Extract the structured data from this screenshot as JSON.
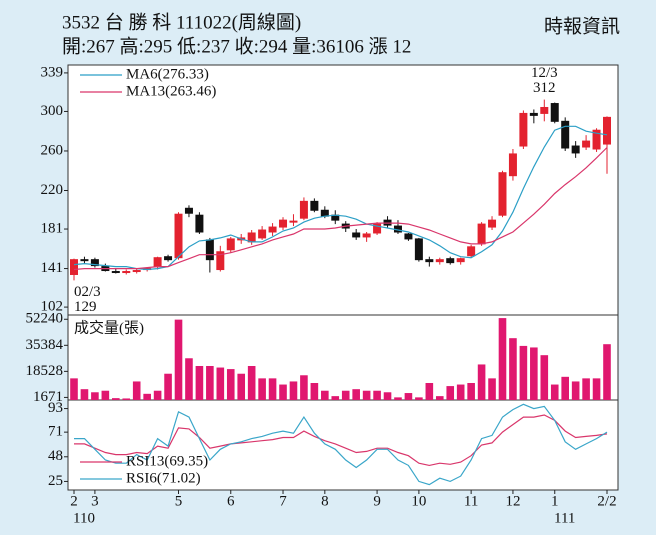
{
  "chart_data": [
    {
      "type": "candlestick",
      "title": "3532 台 勝 科 111022(周線圖)",
      "subtitle": "開:267 高:295 低:237 收:294 量:36106 漲 12",
      "source": "時報資訊",
      "open": [
        135,
        150,
        150,
        143,
        138,
        137,
        138,
        140,
        143,
        153,
        152,
        202,
        195,
        170,
        140,
        160,
        170,
        168,
        172,
        178,
        183,
        188,
        192,
        209,
        200,
        195,
        186,
        177,
        173,
        177,
        190,
        184,
        176,
        171,
        150,
        148,
        151,
        148,
        154,
        166,
        183,
        195,
        235,
        265,
        298,
        298,
        308,
        290,
        265,
        264,
        262,
        267
      ],
      "high": [
        151,
        153,
        152,
        146,
        141,
        140,
        141,
        142,
        153,
        155,
        198,
        205,
        198,
        172,
        164,
        173,
        176,
        180,
        184,
        187,
        193,
        196,
        213,
        212,
        204,
        200,
        189,
        181,
        178,
        188,
        194,
        190,
        177,
        172,
        153,
        152,
        153,
        152,
        165,
        188,
        194,
        240,
        262,
        301,
        302,
        312,
        309,
        294,
        270,
        276,
        283,
        295
      ],
      "low": [
        129,
        146,
        142,
        138,
        136,
        135,
        136,
        138,
        140,
        148,
        150,
        193,
        176,
        137,
        138,
        157,
        166,
        165,
        170,
        174,
        180,
        184,
        190,
        198,
        192,
        186,
        178,
        170,
        168,
        175,
        182,
        176,
        169,
        148,
        143,
        145,
        145,
        145,
        152,
        164,
        180,
        193,
        230,
        262,
        288,
        290,
        288,
        260,
        253,
        261,
        259,
        237
      ],
      "close": [
        150,
        149,
        144,
        139,
        137,
        138,
        139,
        141,
        152,
        150,
        196,
        197,
        178,
        150,
        158,
        171,
        172,
        177,
        180,
        183,
        190,
        189,
        209,
        200,
        194,
        190,
        182,
        173,
        176,
        186,
        185,
        178,
        171,
        150,
        148,
        150,
        147,
        151,
        163,
        186,
        190,
        238,
        257,
        298,
        296,
        304,
        290,
        263,
        258,
        270,
        281,
        294
      ],
      "up_color": "#e3222f",
      "down_color": "#111111",
      "series": [
        {
          "name": "MA6(276.33)",
          "color": "#2b9fc6",
          "values": [
            145,
            146,
            145,
            144,
            143,
            143,
            141,
            140,
            141,
            143,
            153,
            163,
            169,
            170,
            172,
            175,
            171,
            168,
            168,
            173,
            179,
            182,
            188,
            192,
            194,
            195,
            194,
            191,
            186,
            184,
            182,
            180,
            178,
            174,
            170,
            164,
            157,
            153,
            152,
            158,
            165,
            179,
            198,
            222,
            244,
            264,
            281,
            285,
            285,
            280,
            278,
            276.33
          ]
        },
        {
          "name": "MA13(263.46)",
          "color": "#d9366b",
          "values": [
            140,
            141,
            141,
            141,
            141,
            141,
            141,
            142,
            143,
            143,
            147,
            151,
            155,
            155,
            155,
            157,
            160,
            163,
            166,
            170,
            173,
            176,
            181,
            181,
            181,
            182,
            184,
            185,
            186,
            187,
            187,
            187,
            186,
            183,
            180,
            176,
            172,
            168,
            166,
            166,
            168,
            173,
            178,
            187,
            196,
            206,
            217,
            226,
            234,
            243,
            253,
            263.46
          ]
        }
      ],
      "legend": "upper left",
      "annotations": [
        {
          "date": "02/3",
          "value": 129,
          "at": "low"
        },
        {
          "date": "12/3",
          "value": 312,
          "at": "high"
        }
      ],
      "ylim": [
        94,
        347
      ],
      "yticks": [
        102,
        141,
        181,
        220,
        260,
        300,
        339
      ]
    },
    {
      "type": "bar",
      "title": "成交量(張)",
      "color": "#e0176f",
      "values": [
        14000,
        7000,
        5000,
        6000,
        1200,
        1000,
        12000,
        4000,
        6000,
        17000,
        52000,
        27000,
        22000,
        22000,
        21000,
        20000,
        17000,
        22000,
        14000,
        14000,
        10000,
        12000,
        16000,
        11000,
        6000,
        2500,
        6000,
        7000,
        6000,
        6000,
        5000,
        1700,
        4500,
        1700,
        11000,
        2500,
        9000,
        10000,
        11000,
        23000,
        14000,
        53000,
        40000,
        35000,
        34000,
        29000,
        10000,
        15000,
        12000,
        14000,
        14000,
        36106
      ],
      "ylim": [
        0,
        55000
      ],
      "yticks": [
        1671,
        18528,
        35384,
        52240
      ]
    },
    {
      "type": "line",
      "categories": [
        "2",
        null,
        "3",
        null,
        null,
        null,
        null,
        null,
        null,
        null,
        "5",
        null,
        null,
        null,
        null,
        "6",
        null,
        null,
        null,
        null,
        "7",
        null,
        null,
        null,
        "8",
        null,
        null,
        null,
        null,
        "9",
        null,
        null,
        null,
        "10",
        null,
        null,
        null,
        null,
        "11",
        null,
        null,
        null,
        "12",
        null,
        null,
        null,
        "1",
        null,
        null,
        null,
        null,
        "2/2"
      ],
      "years": [
        "110",
        null,
        null,
        null,
        null,
        null,
        null,
        null,
        null,
        null,
        null,
        null,
        null,
        null,
        null,
        null,
        null,
        null,
        null,
        null,
        null,
        null,
        null,
        null,
        null,
        null,
        null,
        null,
        null,
        null,
        null,
        null,
        null,
        null,
        null,
        null,
        null,
        null,
        null,
        null,
        null,
        null,
        null,
        null,
        null,
        null,
        "111",
        null,
        null,
        null,
        null,
        null
      ],
      "series": [
        {
          "name": "RSI13(69.35)",
          "color": "#d9366b",
          "values": [
            60,
            60,
            56,
            52,
            50,
            50,
            52,
            51,
            58,
            56,
            75,
            74,
            66,
            56,
            58,
            60,
            61,
            62,
            63,
            64,
            66,
            66,
            72,
            67,
            63,
            60,
            56,
            52,
            53,
            56,
            56,
            52,
            49,
            42,
            40,
            42,
            41,
            43,
            49,
            59,
            61,
            71,
            78,
            85,
            85,
            87,
            82,
            72,
            66,
            67,
            68,
            69.35
          ]
        },
        {
          "name": "RSI6(71.02)",
          "color": "#3aa6c9",
          "values": [
            65,
            65,
            55,
            45,
            42,
            42,
            50,
            45,
            65,
            58,
            90,
            85,
            65,
            45,
            55,
            60,
            62,
            65,
            67,
            70,
            72,
            70,
            85,
            70,
            60,
            55,
            45,
            38,
            45,
            55,
            55,
            45,
            40,
            25,
            22,
            28,
            25,
            30,
            45,
            65,
            68,
            85,
            92,
            97,
            93,
            95,
            82,
            62,
            55,
            60,
            65,
            71.02
          ]
        }
      ],
      "legend": "lower left",
      "ylim": [
        17,
        101
      ],
      "yticks": [
        25,
        48,
        71,
        93
      ]
    }
  ]
}
